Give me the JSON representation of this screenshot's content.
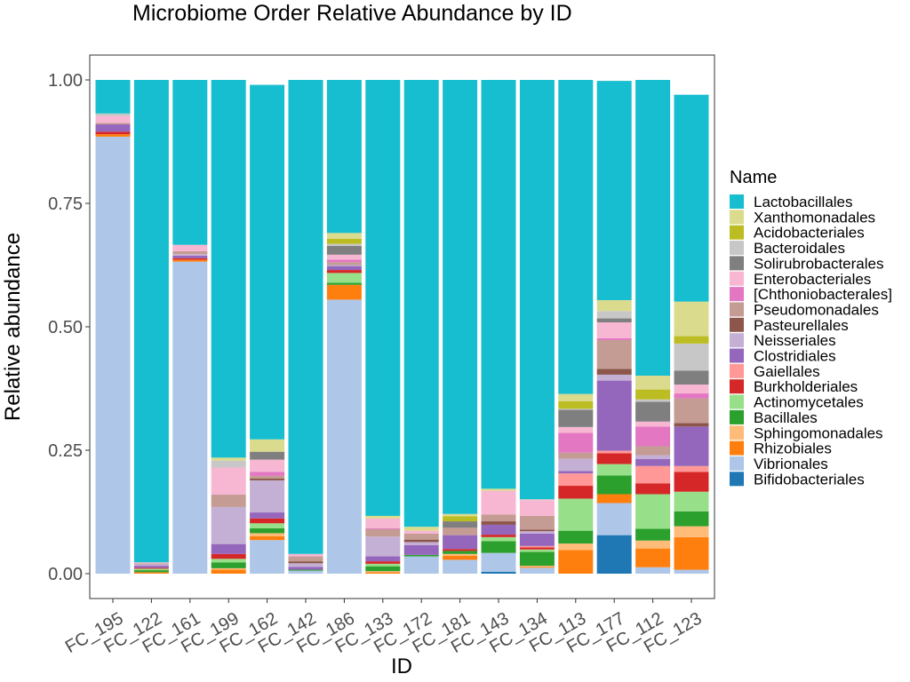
{
  "chart_data": {
    "type": "bar",
    "stacked": true,
    "title": "Microbiome Order Relative Abundance by ID",
    "xlabel": "ID",
    "ylabel": "Relative abundance",
    "ylim": [
      0,
      1
    ],
    "yticks": [
      "0.00",
      "0.25",
      "0.50",
      "0.75",
      "1.00"
    ],
    "grid": false,
    "legend_title": "Name",
    "legend_position": "right",
    "categories": [
      "FC_195",
      "FC_122",
      "FC_161",
      "FC_199",
      "FC_162",
      "FC_142",
      "FC_186",
      "FC_133",
      "FC_172",
      "FC_181",
      "FC_143",
      "FC_134",
      "FC_113",
      "FC_177",
      "FC_112",
      "FC_123"
    ],
    "series": [
      {
        "name": "Bifidobacteriales",
        "color": "#1f77b4",
        "values": [
          0,
          0,
          0,
          0,
          0,
          0,
          0,
          0,
          0,
          0,
          0.004,
          0,
          0,
          0.078,
          0,
          0
        ]
      },
      {
        "name": "Vibrionales",
        "color": "#aec7e8",
        "values": [
          0.885,
          0,
          0.632,
          0,
          0.068,
          0.006,
          0.555,
          0,
          0.035,
          0.028,
          0.038,
          0.012,
          0,
          0.065,
          0.013,
          0.008
        ]
      },
      {
        "name": "Rhizobiales",
        "color": "#ff7f0e",
        "values": [
          0.005,
          0.003,
          0.004,
          0.008,
          0.008,
          0,
          0.03,
          0.003,
          0,
          0.008,
          0,
          0.002,
          0.048,
          0.018,
          0.038,
          0.066
        ]
      },
      {
        "name": "Sphingomonadales",
        "color": "#ffbb78",
        "values": [
          0,
          0,
          0,
          0.003,
          0.006,
          0,
          0,
          0.002,
          0,
          0.004,
          0,
          0.002,
          0.013,
          0,
          0.016,
          0.022
        ]
      },
      {
        "name": "Bacillales",
        "color": "#2ca02c",
        "values": [
          0,
          0.004,
          0,
          0.012,
          0.01,
          0.002,
          0.004,
          0.01,
          0.003,
          0.006,
          0.024,
          0.028,
          0.026,
          0.038,
          0.024,
          0.03
        ]
      },
      {
        "name": "Actinomycetales",
        "color": "#98df8a",
        "values": [
          0,
          0.003,
          0,
          0.007,
          0.01,
          0,
          0.02,
          0.005,
          0,
          0,
          0.008,
          0.005,
          0.065,
          0.023,
          0.07,
          0.04
        ]
      },
      {
        "name": "Burkholderiales",
        "color": "#d62728",
        "values": [
          0.005,
          0.002,
          0.003,
          0.01,
          0.01,
          0,
          0.006,
          0.005,
          0,
          0.004,
          0.005,
          0.004,
          0.026,
          0.022,
          0.022,
          0.04
        ]
      },
      {
        "name": "Gaiellales",
        "color": "#ff9896",
        "values": [
          0,
          0,
          0,
          0,
          0,
          0,
          0,
          0,
          0,
          0,
          0,
          0.003,
          0.025,
          0.005,
          0.035,
          0.012
        ]
      },
      {
        "name": "Clostridiales",
        "color": "#9467bd",
        "values": [
          0.015,
          0.004,
          0.005,
          0.02,
          0.012,
          0.006,
          0.008,
          0.01,
          0.02,
          0.028,
          0.02,
          0.025,
          0.005,
          0.142,
          0.014,
          0.08
        ]
      },
      {
        "name": "Neisseriales",
        "color": "#c5b0d5",
        "values": [
          0,
          0.003,
          0.003,
          0.075,
          0.065,
          0.007,
          0.002,
          0.04,
          0.006,
          0,
          0,
          0.005,
          0.025,
          0.012,
          0.008,
          0
        ]
      },
      {
        "name": "Pasteurellales",
        "color": "#8c564b",
        "values": [
          0,
          0,
          0,
          0,
          0.004,
          0.004,
          0,
          0,
          0.005,
          0,
          0.007,
          0.003,
          0,
          0.012,
          0,
          0.007
        ]
      },
      {
        "name": "Pseudomonadales",
        "color": "#c49c94",
        "values": [
          0.003,
          0.002,
          0.006,
          0.025,
          0.005,
          0.01,
          0.006,
          0.015,
          0.012,
          0.015,
          0.014,
          0.028,
          0.012,
          0.058,
          0.018,
          0.05
        ]
      },
      {
        "name": "[Chthoniobacterales]",
        "color": "#e377c2",
        "values": [
          0,
          0,
          0,
          0,
          0.008,
          0,
          0.005,
          0.002,
          0,
          0,
          0,
          0,
          0.04,
          0.004,
          0.04,
          0.01
        ]
      },
      {
        "name": "Enterobacteriales",
        "color": "#f7b6d2",
        "values": [
          0.014,
          0.002,
          0.013,
          0.055,
          0.025,
          0.005,
          0.01,
          0.02,
          0.006,
          0,
          0.048,
          0.032,
          0.012,
          0.032,
          0.01,
          0.018
        ]
      },
      {
        "name": "Solirubrobacterales",
        "color": "#7f7f7f",
        "values": [
          0,
          0,
          0,
          0,
          0.016,
          0,
          0.018,
          0,
          0,
          0.013,
          0,
          0,
          0.035,
          0.008,
          0.04,
          0.028
        ]
      },
      {
        "name": "Bacteroidales",
        "color": "#c7c7c7",
        "values": [
          0.005,
          0,
          0,
          0.014,
          0,
          0,
          0.004,
          0,
          0,
          0,
          0,
          0.002,
          0.002,
          0.015,
          0.005,
          0.055
        ]
      },
      {
        "name": "Acidobacteriales",
        "color": "#bcbd22",
        "values": [
          0,
          0,
          0,
          0,
          0,
          0,
          0.01,
          0,
          0,
          0.01,
          0,
          0,
          0.015,
          0,
          0.02,
          0.015
        ]
      },
      {
        "name": "Xanthomonadales",
        "color": "#dbdb8d",
        "values": [
          0,
          0,
          0,
          0.006,
          0.025,
          0,
          0.012,
          0.005,
          0.008,
          0.005,
          0.004,
          0,
          0.015,
          0.022,
          0.028,
          0.07
        ]
      },
      {
        "name": "Lactobacillales",
        "color": "#17becf",
        "values": [
          0.068,
          0.977,
          0.334,
          0.765,
          0.718,
          0.96,
          0.31,
          0.883,
          0.905,
          0.879,
          0.828,
          0.849,
          0.636,
          0.444,
          0.599,
          0.419
        ]
      }
    ],
    "legend_order": [
      "Lactobacillales",
      "Xanthomonadales",
      "Acidobacteriales",
      "Bacteroidales",
      "Solirubrobacterales",
      "Enterobacteriales",
      "[Chthoniobacterales]",
      "Pseudomonadales",
      "Pasteurellales",
      "Neisseriales",
      "Clostridiales",
      "Gaiellales",
      "Burkholderiales",
      "Actinomycetales",
      "Bacillales",
      "Sphingomonadales",
      "Rhizobiales",
      "Vibrionales",
      "Bifidobacteriales"
    ]
  }
}
